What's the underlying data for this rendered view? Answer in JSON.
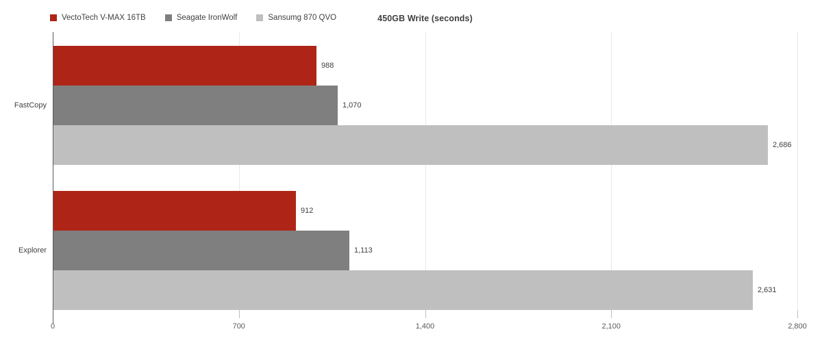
{
  "chart_data": {
    "type": "bar",
    "orientation": "horizontal",
    "title": "450GB Write (seconds)",
    "categories": [
      "FastCopy",
      "Explorer"
    ],
    "series": [
      {
        "name": "VectoTech V-MAX 16TB",
        "color": "#ae2517",
        "values": [
          988,
          912
        ]
      },
      {
        "name": "Seagate IronWolf",
        "color": "#7f7f7f",
        "values": [
          1070,
          1113
        ]
      },
      {
        "name": "Sansumg 870 QVO",
        "color": "#bfbfbf",
        "values": [
          2686,
          2631
        ]
      }
    ],
    "x_axis": {
      "min": 0,
      "max": 2800,
      "ticks": [
        0,
        700,
        1400,
        2100,
        2800
      ],
      "tick_labels": [
        "0",
        "700",
        "1,400",
        "2,100",
        "2,800"
      ]
    },
    "grid": true,
    "legend_position": "top-left",
    "colors": {
      "gridline": "#e8e8e8",
      "axis_line": "#595959",
      "tick_mark": "#bfbfbf",
      "text": "#404040",
      "tick_text": "#595959",
      "background": "#ffffff"
    }
  }
}
